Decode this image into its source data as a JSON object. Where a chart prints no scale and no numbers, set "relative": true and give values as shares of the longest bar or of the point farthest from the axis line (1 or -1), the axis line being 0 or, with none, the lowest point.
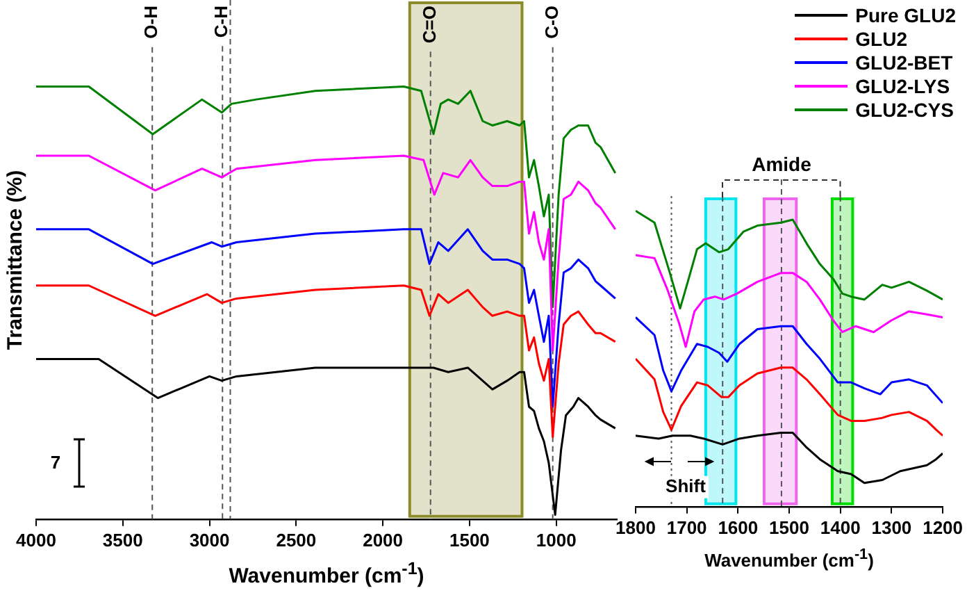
{
  "chart_data": [
    {
      "type": "line",
      "xlabel": "Wavenumber (cm$^{-1}$)",
      "ylabel": "Transmittance (%)",
      "relative": true,
      "xlim": [
        4000,
        650
      ],
      "xticks": [
        4000,
        3500,
        3000,
        2500,
        2000,
        1500,
        1000
      ],
      "grid": false,
      "legend": "top right",
      "annotations": [
        "7"
      ],
      "ref_lines": [
        {
          "axis": "x",
          "value": 3330,
          "label": "O-H",
          "line_style": "dashed"
        },
        {
          "axis": "x",
          "value": 2925,
          "label": "C-H",
          "line_style": "dashed"
        },
        {
          "axis": "x",
          "value": 2880,
          "line_style": "dashed"
        },
        {
          "axis": "x",
          "value": 1725,
          "label": "C=O",
          "line_style": "dashed"
        },
        {
          "axis": "x",
          "value": 1020,
          "label": "C-O",
          "line_style": "dashed"
        }
      ],
      "bands": [
        {
          "axis": "x",
          "from": 1845,
          "to": 1197,
          "color": "#8b8b2a"
        }
      ],
      "series": [
        {
          "name": "Pure GLU2",
          "color": "#000000",
          "x": [
            4000,
            3639,
            3298,
            3000,
            2929,
            2844,
            2390,
            1879,
            1708,
            1623,
            1510,
            1453,
            1368,
            1283,
            1211,
            1185,
            1157,
            1128,
            1100,
            1071,
            1043,
            1006,
            972,
            944,
            901,
            872,
            816,
            773,
            744,
            659
          ],
          "values": [
            0.37,
            0.37,
            0.28,
            0.33,
            0.32,
            0.33,
            0.35,
            0.35,
            0.35,
            0.34,
            0.35,
            0.33,
            0.3,
            0.32,
            0.34,
            0.34,
            0.26,
            0.25,
            0.21,
            0.18,
            0.13,
            0.01,
            0.16,
            0.24,
            0.26,
            0.28,
            0.26,
            0.24,
            0.23,
            0.21
          ]
        },
        {
          "name": "GLU2",
          "color": "#ff0000",
          "x": [
            4000,
            3696,
            3313,
            3014,
            2929,
            2844,
            2390,
            1879,
            1779,
            1731,
            1680,
            1623,
            1510,
            1424,
            1368,
            1283,
            1211,
            1185,
            1157,
            1128,
            1100,
            1071,
            1043,
            1020,
            986,
            957,
            915,
            872,
            816,
            773,
            744,
            659
          ],
          "values": [
            0.54,
            0.54,
            0.47,
            0.52,
            0.5,
            0.51,
            0.53,
            0.54,
            0.53,
            0.47,
            0.52,
            0.5,
            0.53,
            0.49,
            0.47,
            0.48,
            0.47,
            0.47,
            0.39,
            0.42,
            0.36,
            0.32,
            0.37,
            0.19,
            0.36,
            0.45,
            0.47,
            0.48,
            0.45,
            0.43,
            0.43,
            0.41
          ]
        },
        {
          "name": "GLU2-BET",
          "color": "#0000ff",
          "x": [
            4000,
            3696,
            3327,
            2986,
            2929,
            2844,
            2390,
            1879,
            1779,
            1731,
            1680,
            1623,
            1510,
            1424,
            1368,
            1283,
            1211,
            1185,
            1157,
            1128,
            1100,
            1071,
            1043,
            1020,
            986,
            957,
            915,
            872,
            816,
            773,
            744,
            659
          ],
          "values": [
            0.67,
            0.67,
            0.59,
            0.64,
            0.63,
            0.64,
            0.66,
            0.67,
            0.67,
            0.59,
            0.64,
            0.62,
            0.67,
            0.62,
            0.6,
            0.6,
            0.59,
            0.58,
            0.5,
            0.53,
            0.47,
            0.41,
            0.47,
            0.26,
            0.45,
            0.57,
            0.58,
            0.6,
            0.58,
            0.55,
            0.54,
            0.51
          ]
        },
        {
          "name": "GLU2-LYS",
          "color": "#ff00ff",
          "x": [
            4000,
            3696,
            3313,
            3043,
            2929,
            2844,
            2390,
            1879,
            1765,
            1703,
            1652,
            1566,
            1495,
            1424,
            1368,
            1283,
            1211,
            1185,
            1157,
            1128,
            1100,
            1071,
            1043,
            1020,
            986,
            957,
            915,
            872,
            816,
            773,
            744,
            659
          ],
          "values": [
            0.84,
            0.84,
            0.76,
            0.81,
            0.79,
            0.81,
            0.83,
            0.84,
            0.83,
            0.75,
            0.8,
            0.79,
            0.83,
            0.79,
            0.77,
            0.77,
            0.78,
            0.78,
            0.66,
            0.71,
            0.64,
            0.6,
            0.67,
            0.39,
            0.6,
            0.74,
            0.75,
            0.78,
            0.76,
            0.73,
            0.72,
            0.67
          ]
        },
        {
          "name": "GLU2-CYS",
          "color": "#008000",
          "x": [
            4000,
            3696,
            3327,
            3043,
            2929,
            2873,
            2731,
            2390,
            1879,
            1779,
            1708,
            1666,
            1623,
            1566,
            1495,
            1424,
            1368,
            1283,
            1211,
            1185,
            1157,
            1128,
            1100,
            1071,
            1043,
            1020,
            986,
            957,
            915,
            872,
            816,
            773,
            744,
            659
          ],
          "values": [
            1.0,
            1.0,
            0.89,
            0.97,
            0.94,
            0.96,
            0.97,
            0.99,
            1.0,
            0.99,
            0.89,
            0.96,
            0.97,
            0.96,
            0.99,
            0.92,
            0.91,
            0.92,
            0.91,
            0.92,
            0.79,
            0.83,
            0.77,
            0.7,
            0.75,
            0.49,
            0.75,
            0.88,
            0.9,
            0.91,
            0.91,
            0.87,
            0.86,
            0.8
          ]
        }
      ]
    },
    {
      "type": "line",
      "xlabel": "Wavenumber (cm$^{-1}$)",
      "relative": true,
      "xlim": [
        1800,
        1200
      ],
      "xticks": [
        1800,
        1700,
        1600,
        1500,
        1400,
        1300,
        1200
      ],
      "grid": false,
      "annotations": [
        "Shift"
      ],
      "ref_lines": [
        {
          "axis": "x",
          "value": 1730,
          "line_style": "dotted"
        },
        {
          "axis": "x",
          "value": 1630,
          "line_style": "dashed"
        },
        {
          "axis": "x",
          "value": 1515,
          "label": "Amide",
          "line_style": "dashed"
        },
        {
          "axis": "x",
          "value": 1400,
          "line_style": "dashed"
        }
      ],
      "bands": [
        {
          "axis": "x",
          "from": 1663,
          "to": 1604,
          "color": "#00e5ee"
        },
        {
          "axis": "x",
          "from": 1549,
          "to": 1486,
          "color": "#ee66ee"
        },
        {
          "axis": "x",
          "from": 1416,
          "to": 1376,
          "color": "#00dd00"
        }
      ],
      "series": [
        {
          "color": "#000000",
          "x": [
            1800,
            1755,
            1728,
            1693,
            1667,
            1630,
            1597,
            1562,
            1516,
            1493,
            1466,
            1440,
            1405,
            1379,
            1353,
            1318,
            1283,
            1231,
            1213,
            1200
          ],
          "values": [
            0.24,
            0.23,
            0.24,
            0.24,
            0.23,
            0.21,
            0.23,
            0.24,
            0.25,
            0.25,
            0.2,
            0.16,
            0.12,
            0.11,
            0.08,
            0.09,
            0.12,
            0.14,
            0.16,
            0.18
          ]
        },
        {
          "color": "#ff0000",
          "x": [
            1800,
            1763,
            1746,
            1730,
            1711,
            1680,
            1659,
            1632,
            1619,
            1597,
            1562,
            1516,
            1493,
            1466,
            1440,
            1405,
            1379,
            1353,
            1318,
            1300,
            1266,
            1231,
            1213,
            1200
          ],
          "values": [
            0.5,
            0.43,
            0.32,
            0.26,
            0.34,
            0.42,
            0.41,
            0.37,
            0.37,
            0.41,
            0.45,
            0.47,
            0.47,
            0.43,
            0.38,
            0.31,
            0.29,
            0.29,
            0.3,
            0.31,
            0.32,
            0.29,
            0.26,
            0.24
          ]
        },
        {
          "color": "#0000ff",
          "x": [
            1800,
            1763,
            1746,
            1730,
            1711,
            1680,
            1659,
            1637,
            1621,
            1597,
            1562,
            1516,
            1493,
            1466,
            1440,
            1405,
            1379,
            1353,
            1322,
            1300,
            1266,
            1231,
            1200
          ],
          "values": [
            0.64,
            0.58,
            0.46,
            0.39,
            0.46,
            0.55,
            0.54,
            0.52,
            0.49,
            0.55,
            0.6,
            0.61,
            0.61,
            0.55,
            0.5,
            0.42,
            0.42,
            0.4,
            0.38,
            0.42,
            0.43,
            0.41,
            0.35
          ]
        },
        {
          "color": "#ff00ff",
          "x": [
            1800,
            1763,
            1737,
            1715,
            1702,
            1685,
            1667,
            1645,
            1628,
            1602,
            1562,
            1516,
            1493,
            1466,
            1440,
            1414,
            1396,
            1370,
            1335,
            1300,
            1266,
            1231,
            1200
          ],
          "values": [
            0.85,
            0.84,
            0.73,
            0.62,
            0.54,
            0.66,
            0.7,
            0.71,
            0.7,
            0.72,
            0.76,
            0.79,
            0.79,
            0.76,
            0.7,
            0.63,
            0.59,
            0.61,
            0.59,
            0.63,
            0.66,
            0.65,
            0.64
          ]
        },
        {
          "color": "#008000",
          "x": [
            1800,
            1763,
            1733,
            1713,
            1698,
            1680,
            1663,
            1637,
            1619,
            1589,
            1562,
            1516,
            1493,
            1466,
            1440,
            1414,
            1396,
            1379,
            1353,
            1318,
            1300,
            1266,
            1231,
            1200
          ],
          "values": [
            1.0,
            0.96,
            0.79,
            0.67,
            0.76,
            0.87,
            0.89,
            0.86,
            0.87,
            0.93,
            0.95,
            0.96,
            0.97,
            0.89,
            0.82,
            0.77,
            0.72,
            0.71,
            0.7,
            0.75,
            0.74,
            0.76,
            0.73,
            0.7
          ]
        }
      ]
    }
  ]
}
